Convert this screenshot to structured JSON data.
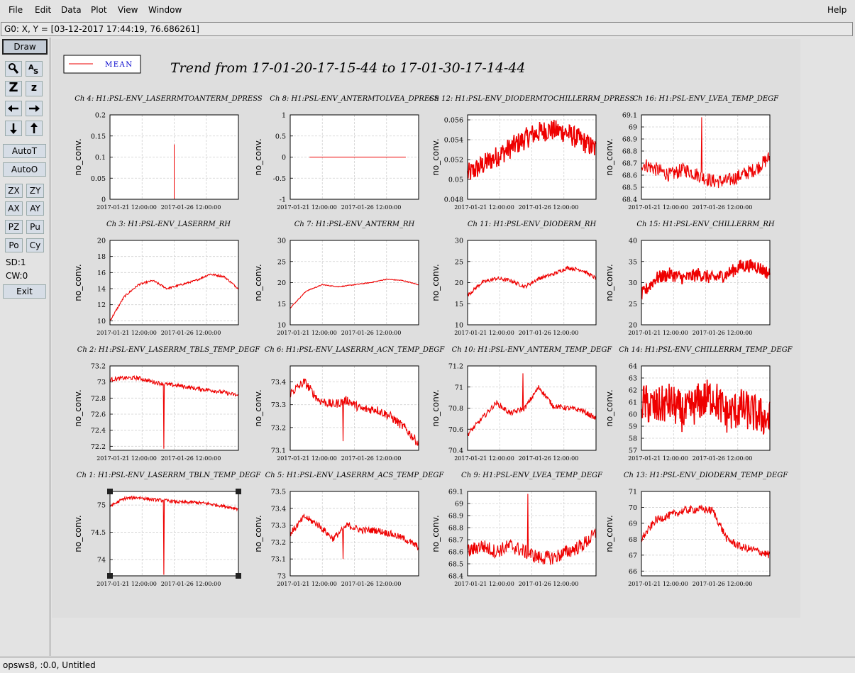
{
  "menubar": {
    "items": [
      "File",
      "Edit",
      "Data",
      "Plot",
      "View",
      "Window"
    ],
    "help": "Help"
  },
  "coordinate_readout": "G0: X, Y = [03-12-2017 17:44:19, 76.686261]",
  "toolbar": {
    "draw": "Draw",
    "zoom_in": "Z",
    "zoom_out": "z",
    "auto_t": "AutoT",
    "auto_o": "AutoO",
    "zx": "ZX",
    "zy": "ZY",
    "ax": "AX",
    "ay": "AY",
    "pz": "PZ",
    "pu": "Pu",
    "po": "Po",
    "cy": "Cy",
    "sd": "SD:1",
    "cw": "CW:0",
    "exit": "Exit"
  },
  "status": "opsws8, :0.0, Untitled",
  "colors": {
    "trace": "#ee0000",
    "legend_text": "#0000cc"
  },
  "chart_data": {
    "main_title": "Trend from 17-01-20-17-15-44 to 17-01-30-17-14-44",
    "legend": [
      {
        "name": "MEAN",
        "color": "#ee0000"
      }
    ],
    "x_tick_labels": [
      "2017-01-21 12:00:00",
      "2017-01-26 12:00:00"
    ],
    "ylabel": "no_conv.",
    "panels": [
      {
        "title": "Ch 4: H1:PSL-ENV_LASERRMTOANTERM_DPRESS",
        "yticks": [
          "0",
          "0.05",
          "0.1",
          "0.15",
          "0.2"
        ],
        "ylim": [
          0,
          0.2
        ],
        "type": "line",
        "shape": "spike",
        "base": 0,
        "spike": 0.13,
        "spikeAt": 0.5
      },
      {
        "title": "Ch 8: H1:PSL-ENV_ANTERMTOLVEA_DPRESS",
        "yticks": [
          "-1",
          "-0.5",
          "0",
          "0.5",
          "1"
        ],
        "ylim": [
          -1,
          1
        ],
        "type": "line",
        "shape": "flat",
        "base": 0
      },
      {
        "title": "Ch 12: H1:PSL-ENV_DIODERMTOCHILLERRM_DPRESS",
        "yticks": [
          "0.048",
          "0.05",
          "0.052",
          "0.054",
          "0.056"
        ],
        "ylim": [
          0.048,
          0.0565
        ],
        "type": "line",
        "shape": "band",
        "profile": [
          0.0505,
          0.0515,
          0.0525,
          0.0535,
          0.0545,
          0.055,
          0.0548,
          0.054,
          0.053
        ],
        "noise": 0.0022
      },
      {
        "title": "Ch 16: H1:PSL-ENV_LVEA_TEMP_DEGF",
        "yticks": [
          "68.4",
          "68.5",
          "68.6",
          "68.7",
          "68.8",
          "68.9",
          "69",
          "69.1"
        ],
        "ylim": [
          68.4,
          69.1
        ],
        "type": "line",
        "shape": "noisy",
        "profile": [
          68.7,
          68.65,
          68.6,
          68.65,
          68.6,
          68.55,
          68.55,
          68.6,
          68.65,
          68.75
        ],
        "noise": 0.12,
        "spike": 69.08,
        "spikeAt": 0.47
      },
      {
        "title": "Ch 3: H1:PSL-ENV_LASERRM_RH",
        "yticks": [
          "10",
          "12",
          "14",
          "16",
          "18",
          "20"
        ],
        "ylim": [
          9.5,
          20
        ],
        "type": "line",
        "shape": "smooth",
        "profile": [
          10,
          13,
          14.5,
          15,
          14,
          14.5,
          15,
          15.8,
          15.5,
          14
        ],
        "noise": 0.25
      },
      {
        "title": "Ch 7: H1:PSL-ENV_ANTERM_RH",
        "yticks": [
          "10",
          "15",
          "20",
          "25",
          "30"
        ],
        "ylim": [
          10,
          30
        ],
        "type": "line",
        "shape": "smooth",
        "profile": [
          14,
          18,
          19.5,
          19,
          19.5,
          20,
          20.8,
          20.5,
          19.5
        ],
        "noise": 0.2
      },
      {
        "title": "Ch 11: H1:PSL-ENV_DIODERM_RH",
        "yticks": [
          "10",
          "15",
          "20",
          "25",
          "30"
        ],
        "ylim": [
          10,
          30
        ],
        "type": "line",
        "shape": "noisy",
        "profile": [
          17,
          20,
          21,
          20.5,
          19,
          21,
          22,
          23.5,
          23,
          21
        ],
        "noise": 0.9
      },
      {
        "title": "Ch 15: H1:PSL-ENV_CHILLERRM_RH",
        "yticks": [
          "20",
          "25",
          "30",
          "35",
          "40"
        ],
        "ylim": [
          20,
          40
        ],
        "type": "line",
        "shape": "band",
        "profile": [
          27,
          31,
          32,
          31,
          32,
          31,
          32,
          34,
          34,
          32
        ],
        "noise": 3.2
      },
      {
        "title": "Ch 2: H1:PSL-ENV_LASERRM_TBLS_TEMP_DEGF",
        "yticks": [
          "72.2",
          "72.4",
          "72.6",
          "72.8",
          "73",
          "73.2"
        ],
        "ylim": [
          72.15,
          73.2
        ],
        "type": "line",
        "shape": "noisy",
        "profile": [
          73.03,
          73.05,
          73.05,
          73.0,
          72.97,
          72.95,
          72.92,
          72.9,
          72.87,
          72.83
        ],
        "noise": 0.05,
        "spike": 72.17,
        "spikeAt": 0.42
      },
      {
        "title": "Ch 6: H1:PSL-ENV_LASERRM_ACN_TEMP_DEGF",
        "yticks": [
          "73.1",
          "73.2",
          "73.3",
          "73.4"
        ],
        "ylim": [
          73.1,
          73.47
        ],
        "type": "line",
        "shape": "noisy",
        "profile": [
          73.35,
          73.4,
          73.32,
          73.3,
          73.32,
          73.28,
          73.28,
          73.25,
          73.2,
          73.13
        ],
        "noise": 0.04,
        "spike": 73.14,
        "spikeAt": 0.41
      },
      {
        "title": "Ch 10: H1:PSL-ENV_ANTERM_TEMP_DEGF",
        "yticks": [
          "70.4",
          "70.6",
          "70.8",
          "71",
          "71.2"
        ],
        "ylim": [
          70.4,
          71.2
        ],
        "type": "line",
        "shape": "noisy",
        "profile": [
          70.55,
          70.7,
          70.85,
          70.75,
          70.8,
          71.0,
          70.82,
          70.8,
          70.78,
          70.7
        ],
        "noise": 0.05,
        "spike": 71.13,
        "spikeAt": 0.43
      },
      {
        "title": "Ch 14: H1:PSL-ENV_CHILLERRM_TEMP_DEGF",
        "yticks": [
          "57",
          "58",
          "59",
          "60",
          "61",
          "62",
          "63",
          "64"
        ],
        "ylim": [
          57,
          64
        ],
        "type": "line",
        "shape": "band",
        "profile": [
          61,
          60.5,
          61,
          60,
          61,
          61.5,
          60,
          60.5,
          60,
          59.5
        ],
        "noise": 3.3
      },
      {
        "title": "Ch 1: H1:PSL-ENV_LASERRM_TBLN_TEMP_DEGF",
        "yticks": [
          "74",
          "74.5",
          "75"
        ],
        "ylim": [
          73.7,
          75.25
        ],
        "type": "line",
        "shape": "noisy",
        "profile": [
          74.98,
          75.12,
          75.14,
          75.1,
          75.08,
          75.05,
          75.05,
          75.02,
          74.98,
          74.93
        ],
        "noise": 0.06,
        "spike": 73.72,
        "spikeAt": 0.42,
        "selected": true
      },
      {
        "title": "Ch 5: H1:PSL-ENV_LASERRM_ACS_TEMP_DEGF",
        "yticks": [
          "73",
          "73.1",
          "73.2",
          "73.3",
          "73.4",
          "73.5"
        ],
        "ylim": [
          73,
          73.5
        ],
        "type": "line",
        "shape": "noisy",
        "profile": [
          73.25,
          73.35,
          73.3,
          73.22,
          73.3,
          73.27,
          73.27,
          73.25,
          73.22,
          73.17
        ],
        "noise": 0.04,
        "spike": 73.1,
        "spikeAt": 0.41
      },
      {
        "title": "Ch 9: H1:PSL-ENV_LVEA_TEMP_DEGF",
        "yticks": [
          "68.4",
          "68.5",
          "68.6",
          "68.7",
          "68.8",
          "68.9",
          "69",
          "69.1"
        ],
        "ylim": [
          68.4,
          69.1
        ],
        "type": "line",
        "shape": "noisy",
        "profile": [
          68.6,
          68.65,
          68.6,
          68.65,
          68.6,
          68.55,
          68.55,
          68.6,
          68.65,
          68.75
        ],
        "noise": 0.12,
        "spike": 69.08,
        "spikeAt": 0.47
      },
      {
        "title": "Ch 13: H1:PSL-ENV_DIODERM_TEMP_DEGF",
        "yticks": [
          "66",
          "67",
          "68",
          "69",
          "70",
          "71"
        ],
        "ylim": [
          65.7,
          71
        ],
        "type": "line",
        "shape": "noisy",
        "profile": [
          68,
          69.2,
          69.5,
          69.8,
          69.9,
          69.8,
          68,
          67.5,
          67.3,
          67
        ],
        "noise": 0.5
      }
    ]
  }
}
